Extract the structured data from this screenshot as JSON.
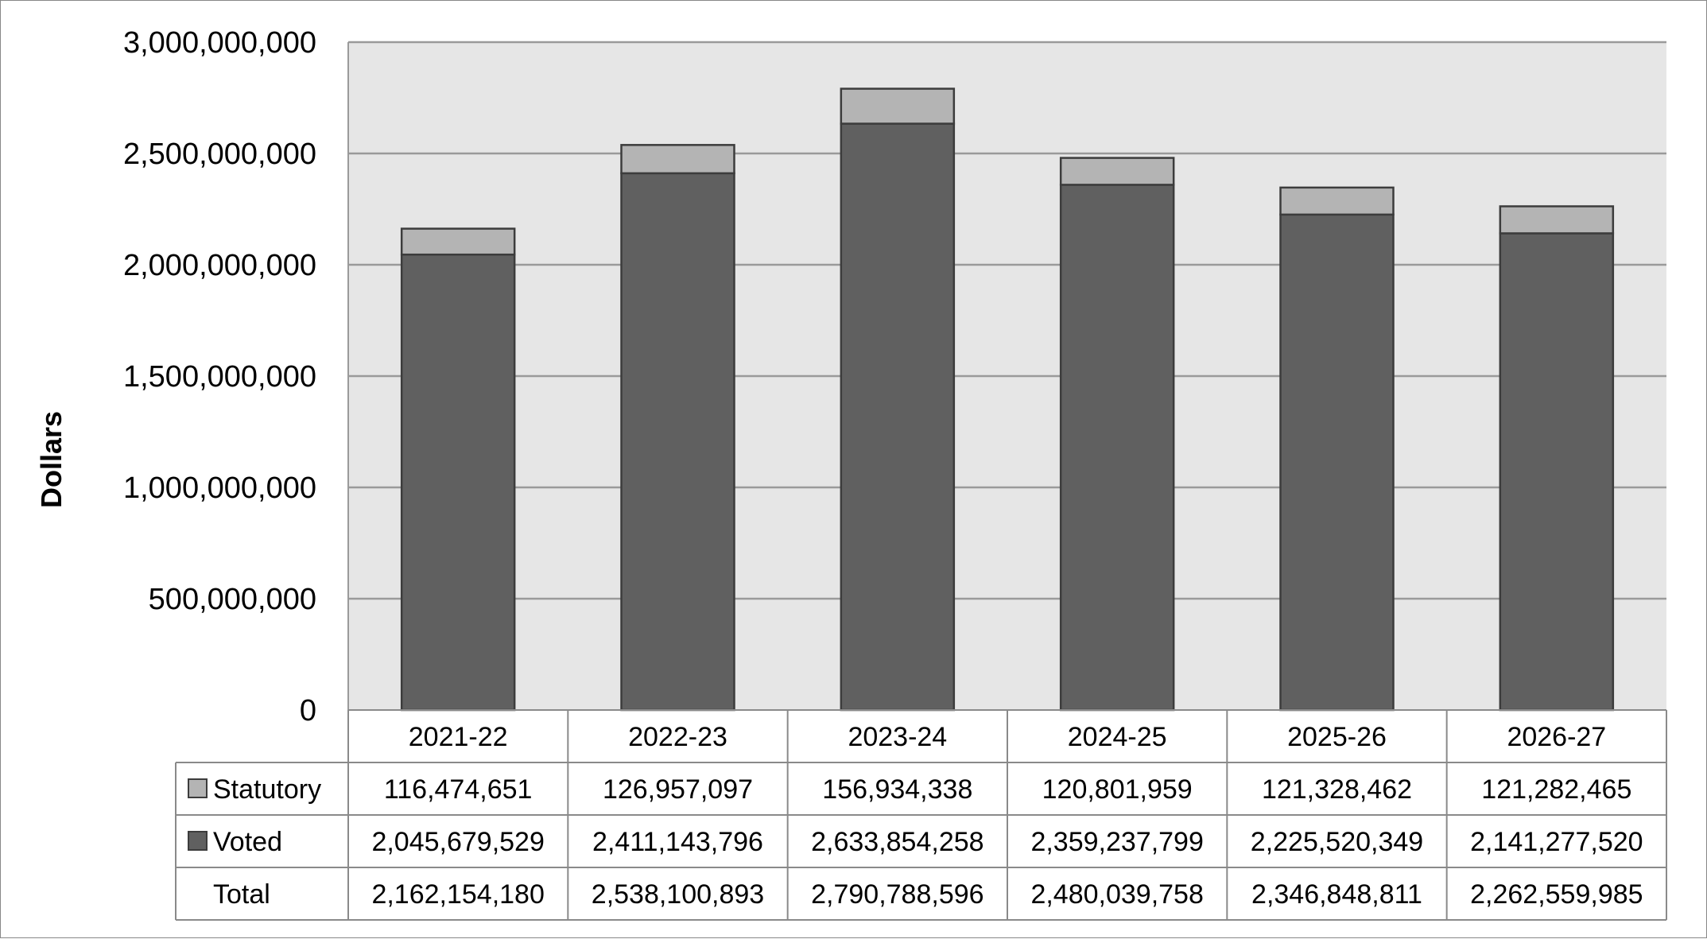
{
  "chart_data": {
    "type": "bar",
    "stacked": true,
    "title": "",
    "xlabel": "",
    "ylabel": "Dollars",
    "ylim": [
      0,
      3000000000
    ],
    "y_ticks": [
      0,
      500000000,
      1000000000,
      1500000000,
      2000000000,
      2500000000,
      3000000000
    ],
    "y_tick_labels": [
      "0",
      "500,000,000",
      "1,000,000,000",
      "1,500,000,000",
      "2,000,000,000",
      "2,500,000,000",
      "3,000,000,000"
    ],
    "categories": [
      "2021-22",
      "2022-23",
      "2023-24",
      "2024-25",
      "2025-26",
      "2026-27"
    ],
    "grid": true,
    "legend_placement": "data-table",
    "series": [
      {
        "name": "Voted",
        "color": "#606060",
        "values": [
          2045679529,
          2411143796,
          2633854258,
          2359237799,
          2225520349,
          2141277520
        ],
        "labels": [
          "2,045,679,529",
          "2,411,143,796",
          "2,633,854,258",
          "2,359,237,799",
          "2,225,520,349",
          "2,141,277,520"
        ]
      },
      {
        "name": "Statutory",
        "color": "#b4b4b4",
        "values": [
          116474651,
          126957097,
          156934338,
          120801959,
          121328462,
          121282465
        ],
        "labels": [
          "116,474,651",
          "126,957,097",
          "156,934,338",
          "120,801,959",
          "121,328,462",
          "121,282,465"
        ]
      }
    ],
    "totals": {
      "name": "Total",
      "values": [
        2162154180,
        2538100893,
        2790788596,
        2480039758,
        2346848811,
        2262559985
      ],
      "labels": [
        "2,162,154,180",
        "2,538,100,893",
        "2,790,788,596",
        "2,480,039,758",
        "2,346,848,811",
        "2,262,559,985"
      ]
    },
    "table_rows": [
      "Statutory",
      "Voted",
      "Total"
    ],
    "colors": {
      "plot_background": "#e6e6e6",
      "gridline": "#9a9a9a",
      "bar_outline": "#3c3c3c"
    }
  }
}
